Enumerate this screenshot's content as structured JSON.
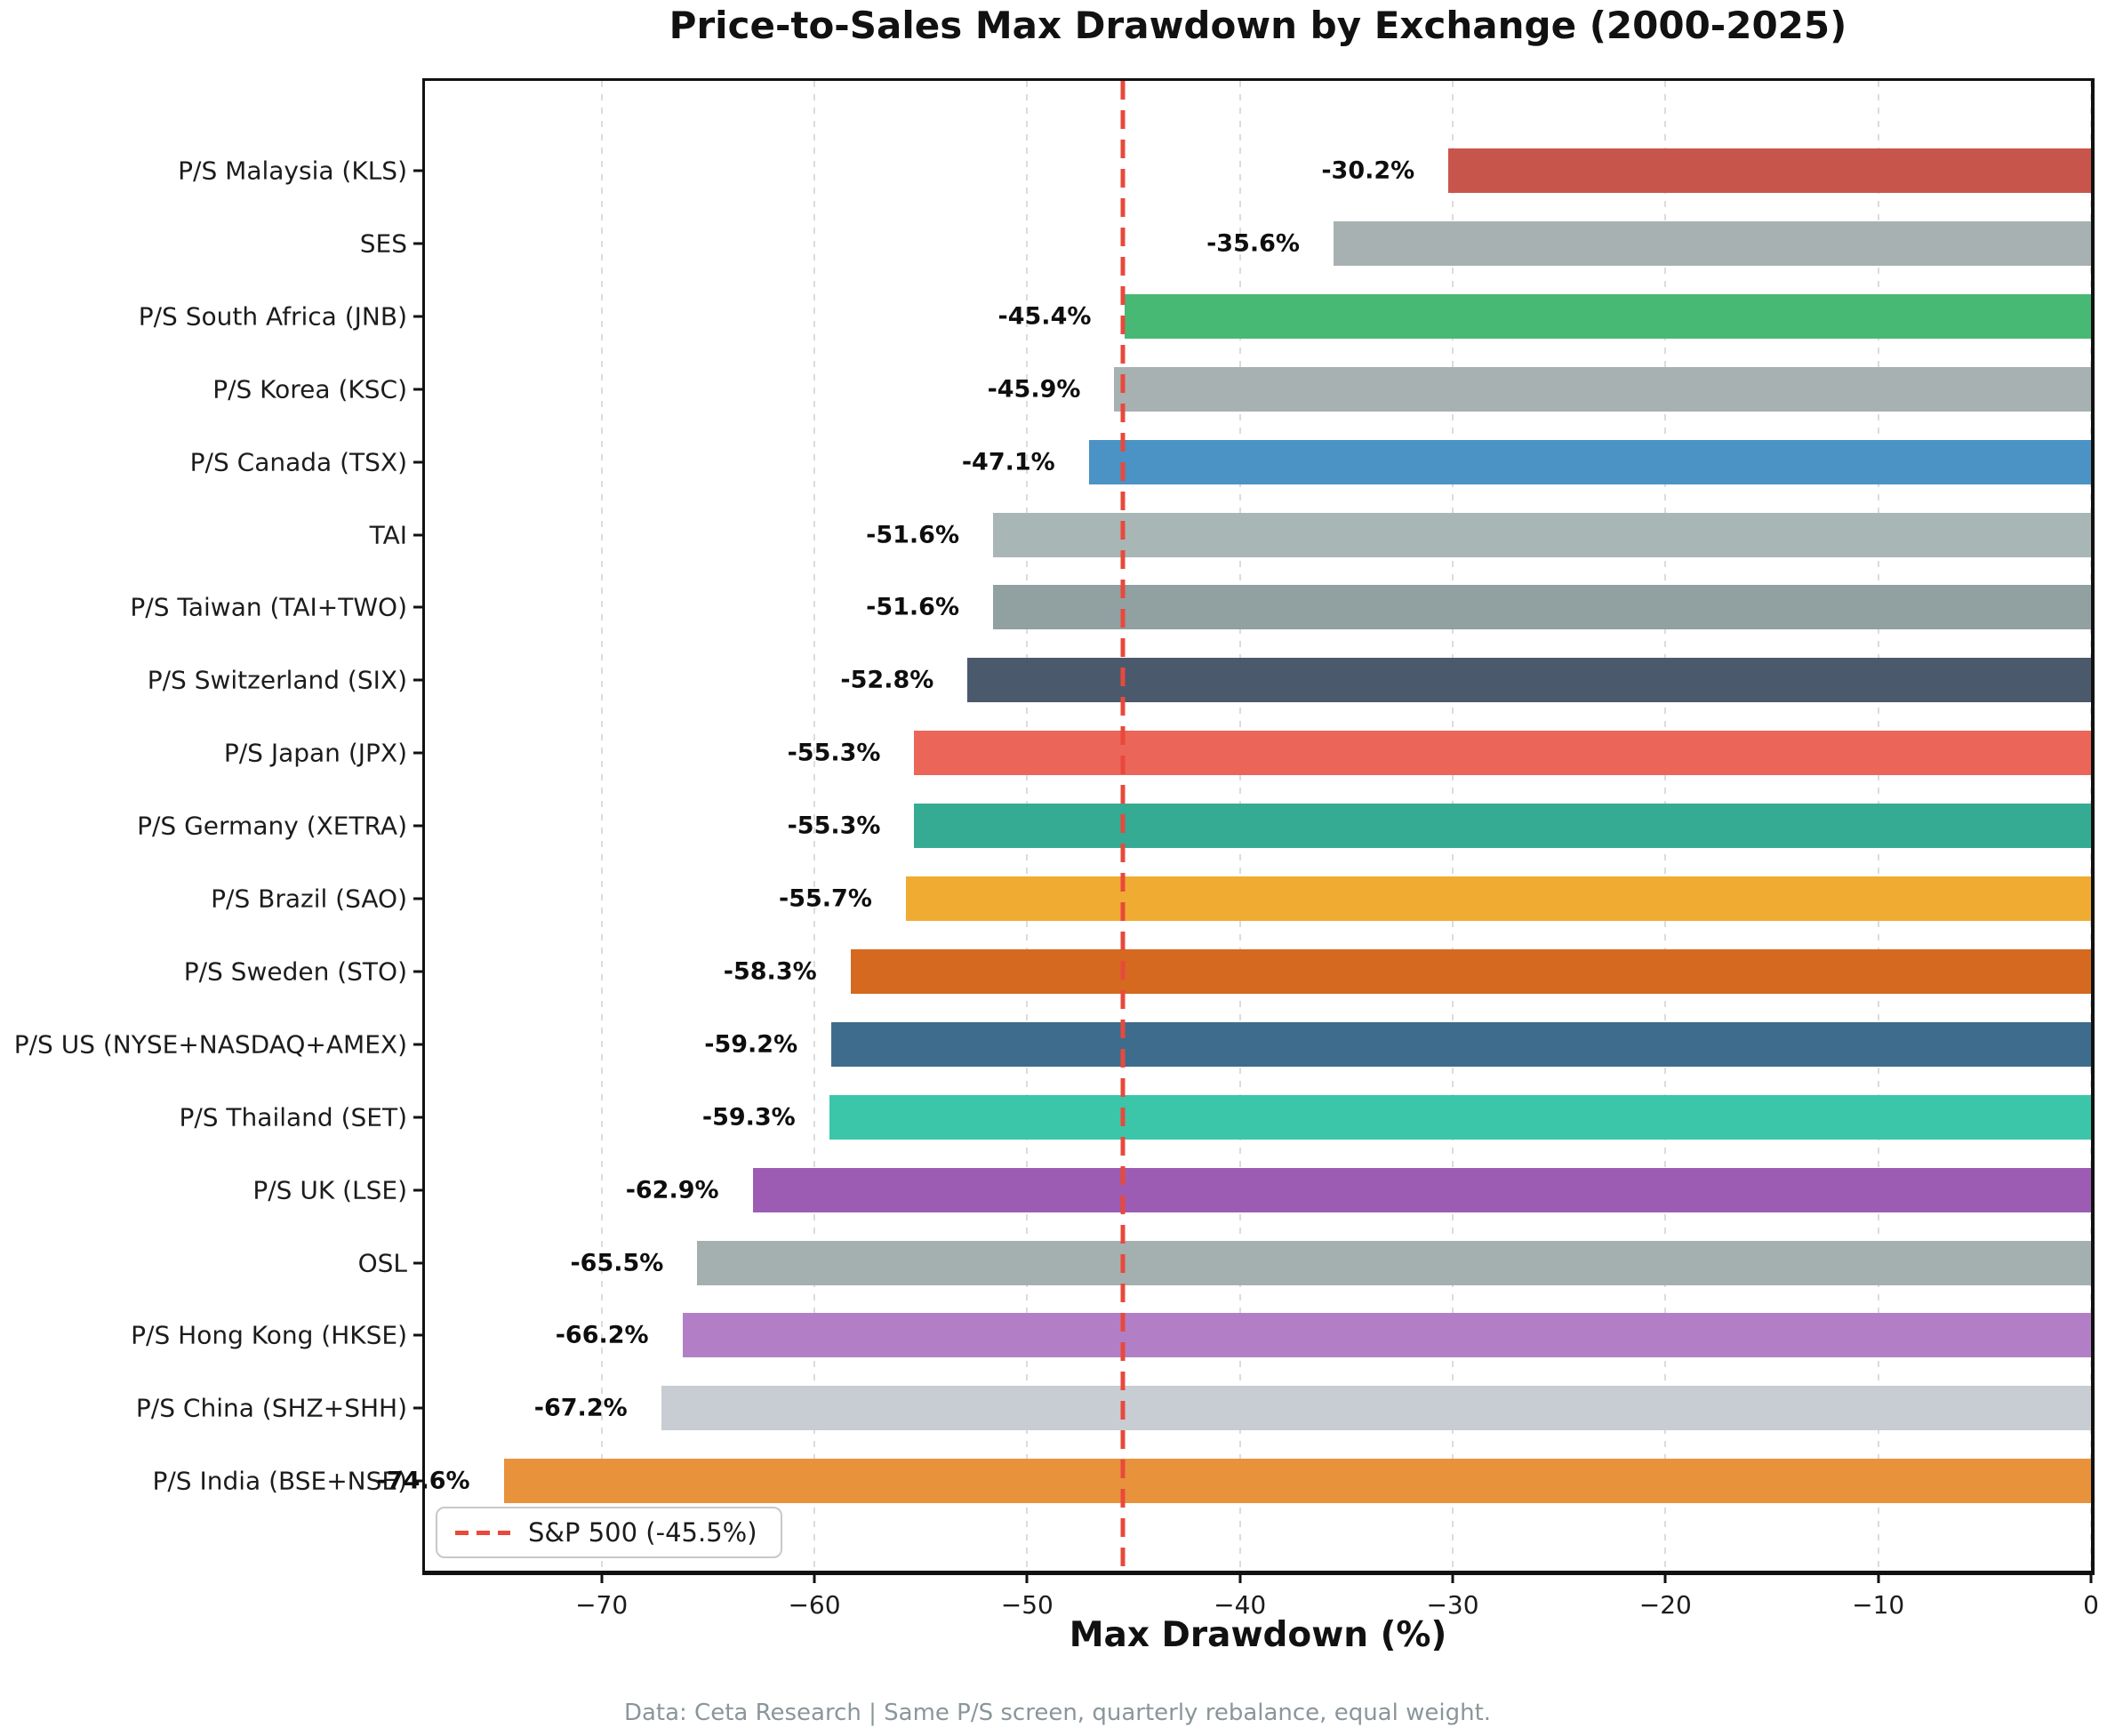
{
  "title": "Price-to-Sales Max Drawdown by Exchange (2000-2025)",
  "footer": "Data: Ceta Research | Same P/S screen, quarterly rebalance, equal weight.",
  "legend": {
    "label": "S&P 500 (-45.5%)"
  },
  "chart_data": {
    "type": "bar",
    "orientation": "horizontal",
    "title": "Price-to-Sales Max Drawdown by Exchange (2000-2025)",
    "xlabel": "Max Drawdown (%)",
    "ylabel": "",
    "xlim": [
      -78.3,
      0
    ],
    "grid": true,
    "legend_position": "lower left",
    "categories": [
      "P/S Malaysia (KLS)",
      "SES",
      "P/S South Africa (JNB)",
      "P/S Korea (KSC)",
      "P/S Canada (TSX)",
      "TAI",
      "P/S Taiwan (TAI+TWO)",
      "P/S Switzerland (SIX)",
      "P/S Japan (JPX)",
      "P/S Germany (XETRA)",
      "P/S Brazil (SAO)",
      "P/S Sweden (STO)",
      "P/S US (NYSE+NASDAQ+AMEX)",
      "P/S Thailand (SET)",
      "P/S UK (LSE)",
      "OSL",
      "P/S Hong Kong (HKSE)",
      "P/S China (SHZ+SHH)",
      "P/S India (BSE+NSE)"
    ],
    "values": [
      -30.2,
      -35.6,
      -45.4,
      -45.9,
      -47.1,
      -51.6,
      -51.6,
      -52.8,
      -55.3,
      -55.3,
      -55.7,
      -58.3,
      -59.2,
      -59.3,
      -62.9,
      -65.5,
      -66.2,
      -67.2,
      -74.6
    ],
    "value_labels": [
      "-30.2%",
      "-35.6%",
      "-45.4%",
      "-45.9%",
      "-47.1%",
      "-51.6%",
      "-51.6%",
      "-52.8%",
      "-55.3%",
      "-55.3%",
      "-55.7%",
      "-58.3%",
      "-59.2%",
      "-59.3%",
      "-62.9%",
      "-65.5%",
      "-66.2%",
      "-67.2%",
      "-74.6%"
    ],
    "colors": [
      "#c8554c",
      "#a7b1b2",
      "#48b974",
      "#a7b1b2",
      "#4b93c5",
      "#a9b6b6",
      "#91a0a1",
      "#4a5a6c",
      "#ec6559",
      "#35ab93",
      "#f0ab32",
      "#d4691f",
      "#3e6c8c",
      "#3bc6a9",
      "#9d5cb4",
      "#a4b0b0",
      "#b27fc6",
      "#c7cdd2",
      "#e8923c"
    ],
    "xticks": [
      -70,
      -60,
      -50,
      -40,
      -30,
      -20,
      -10,
      0
    ],
    "xtick_labels": [
      "−70",
      "−60",
      "−50",
      "−40",
      "−30",
      "−20",
      "−10",
      "0"
    ],
    "reference_line": {
      "value": -45.5,
      "label": "S&P 500 (-45.5%)",
      "color": "#e8493c",
      "style": "dashed"
    }
  }
}
